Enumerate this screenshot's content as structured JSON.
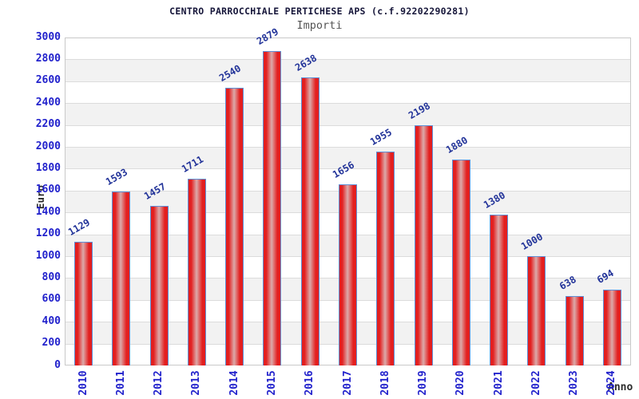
{
  "chart_data": {
    "type": "bar",
    "title": "CENTRO PARROCCHIALE PERTICHESE APS (c.f.92202290281)",
    "subtitle": "Importi",
    "xlabel": "Anno",
    "ylabel": "Euro",
    "categories": [
      "2010",
      "2011",
      "2012",
      "2013",
      "2014",
      "2015",
      "2016",
      "2017",
      "2018",
      "2019",
      "2020",
      "2021",
      "2022",
      "2023",
      "2024"
    ],
    "values": [
      1129,
      1593,
      1457,
      1711,
      2540,
      2879,
      2638,
      1656,
      1955,
      2198,
      1880,
      1380,
      1000,
      638,
      694
    ],
    "ylim": [
      0,
      3000
    ],
    "ytick_step": 200,
    "grid": true,
    "legend_position": "none",
    "band_pattern": "alternating-200",
    "colors": {
      "bar_main": "#e31f1f",
      "bar_highlight": "#dcaaaa",
      "bar_border": "#5e8fd6",
      "tick_label": "#2222cc",
      "value_label": "#223399",
      "title": "#16163a",
      "subtitle": "#555555",
      "axis_title": "#2b2b2b",
      "band": "#f2f2f2",
      "gridline": "#dcdcdc",
      "plot_border": "#c9c9c9"
    }
  }
}
